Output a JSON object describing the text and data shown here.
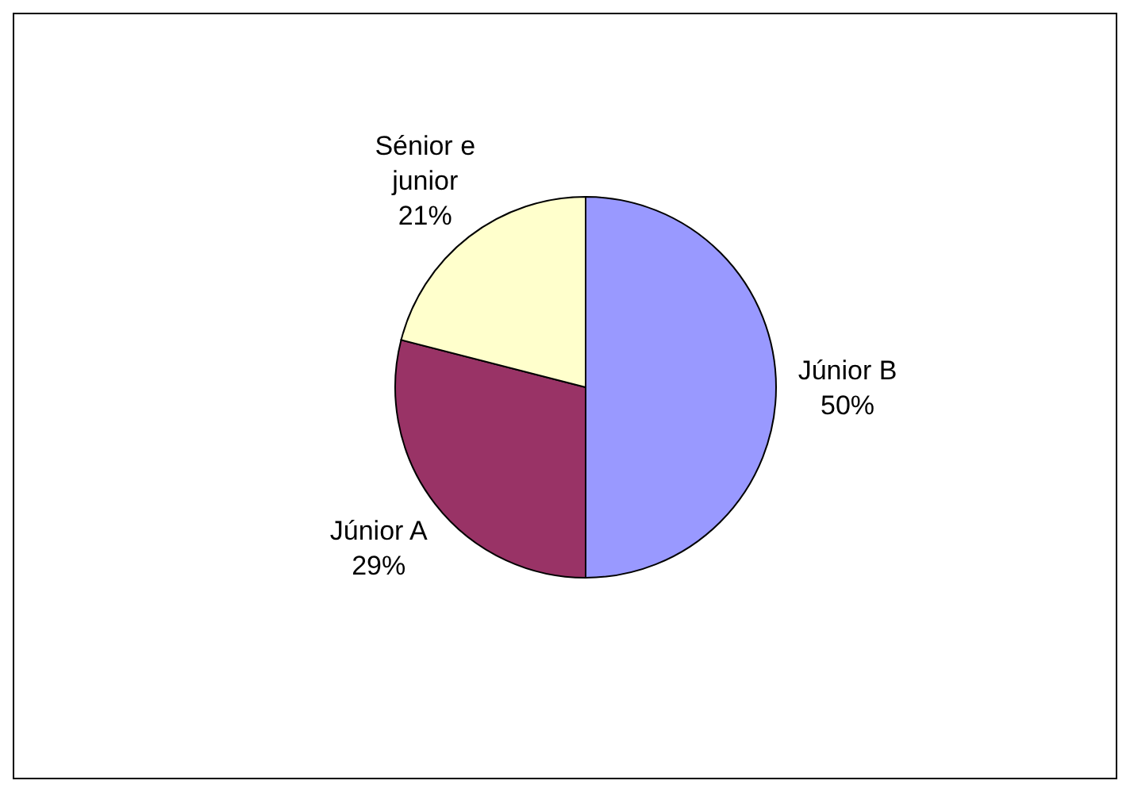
{
  "chart_data": {
    "type": "pie",
    "categories": [
      "Júnior B",
      "Júnior A",
      "Sénior e junior"
    ],
    "values": [
      50,
      29,
      21
    ],
    "colors": [
      "#9999ff",
      "#993366",
      "#ffffcc"
    ],
    "value_labels": [
      "50%",
      "29%",
      "21%"
    ]
  }
}
